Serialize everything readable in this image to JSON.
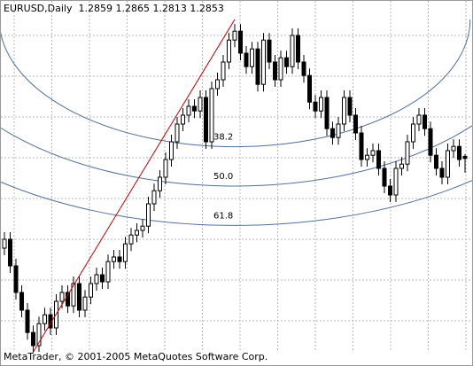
{
  "chart_data": {
    "type": "candlestick",
    "title": "EURUSD,Daily  1.2859 1.2865 1.2813 1.2853",
    "footer": "MetaTrader, © 2001-2005 MetaQuotes Software Corp.",
    "ylim": [
      1.23,
      1.33
    ],
    "grid": true,
    "candle_color": "#000000",
    "up_fill": "#ffffff",
    "down_fill": "#000000",
    "trend_color": "#c00000",
    "fib_color": "#4f6f9a",
    "fib_levels": [
      38.2,
      {
        "value": 50,
        "label": "50.0"
      },
      61.8
    ],
    "open": [
      1.26,
      1.2625,
      1.255,
      1.2475,
      1.2425,
      1.2362,
      1.2325,
      1.2387,
      1.2412,
      1.2375,
      1.245,
      1.2475,
      1.2437,
      1.25,
      1.2425,
      1.2462,
      1.25,
      1.2525,
      1.2505,
      1.2562,
      1.2575,
      1.2562,
      1.2612,
      1.2637,
      1.265,
      1.2662,
      1.2725,
      1.2762,
      1.28,
      1.285,
      1.29,
      1.295,
      1.2975,
      1.3,
      1.2987,
      1.3025,
      1.29,
      1.305,
      1.3075,
      1.3125,
      1.3187,
      1.3212,
      1.315,
      1.3112,
      1.3162,
      1.3062,
      1.3187,
      1.3125,
      1.3075,
      1.3137,
      1.3112,
      1.32,
      1.3125,
      1.3087,
      1.3012,
      1.2987,
      1.3025,
      1.2937,
      1.2912,
      1.295,
      1.3025,
      1.2975,
      1.2925,
      1.285,
      1.2862,
      1.2875,
      1.2825,
      1.2775,
      1.275,
      1.2825,
      1.2837,
      1.29,
      1.295,
      1.2975,
      1.2937,
      1.2862,
      1.2825,
      1.28,
      1.2875,
      1.2887,
      1.2859
    ],
    "high": [
      1.2645,
      1.2645,
      1.257,
      1.2495,
      1.2445,
      1.2382,
      1.2407,
      1.2432,
      1.2432,
      1.247,
      1.2495,
      1.2495,
      1.252,
      1.252,
      1.2482,
      1.252,
      1.2545,
      1.2545,
      1.2582,
      1.2595,
      1.2595,
      1.2632,
      1.2657,
      1.267,
      1.2682,
      1.2745,
      1.2782,
      1.282,
      1.287,
      1.292,
      1.297,
      1.2995,
      1.302,
      1.302,
      1.3045,
      1.3045,
      1.307,
      1.3095,
      1.3145,
      1.3207,
      1.3232,
      1.3232,
      1.317,
      1.3182,
      1.3182,
      1.3207,
      1.3207,
      1.3145,
      1.3157,
      1.3157,
      1.322,
      1.322,
      1.3145,
      1.3107,
      1.3032,
      1.3045,
      1.3045,
      1.2957,
      1.297,
      1.3045,
      1.3045,
      1.2995,
      1.2945,
      1.2882,
      1.2895,
      1.2895,
      1.2845,
      1.2795,
      1.2845,
      1.2857,
      1.292,
      1.297,
      1.2995,
      1.2995,
      1.2957,
      1.2882,
      1.2845,
      1.2895,
      1.2907,
      1.2907,
      1.2865
    ],
    "low": [
      1.258,
      1.253,
      1.2455,
      1.2405,
      1.2342,
      1.2305,
      1.2305,
      1.2367,
      1.2355,
      1.2355,
      1.243,
      1.2417,
      1.2417,
      1.2405,
      1.2405,
      1.2442,
      1.248,
      1.2485,
      1.2485,
      1.2542,
      1.2542,
      1.2542,
      1.2592,
      1.2617,
      1.263,
      1.2642,
      1.2705,
      1.2742,
      1.278,
      1.283,
      1.288,
      1.293,
      1.2955,
      1.2967,
      1.2967,
      1.288,
      1.288,
      1.303,
      1.3055,
      1.3105,
      1.3167,
      1.313,
      1.3092,
      1.3092,
      1.3042,
      1.3042,
      1.3105,
      1.3055,
      1.3055,
      1.3092,
      1.3092,
      1.3105,
      1.3067,
      1.2992,
      1.2967,
      1.2967,
      1.2917,
      1.2892,
      1.2892,
      1.293,
      1.2955,
      1.2905,
      1.283,
      1.283,
      1.2842,
      1.2805,
      1.2755,
      1.273,
      1.273,
      1.2805,
      1.2817,
      1.288,
      1.293,
      1.2917,
      1.2842,
      1.2805,
      1.278,
      1.278,
      1.2855,
      1.283,
      1.2813
    ],
    "close": [
      1.2625,
      1.255,
      1.2475,
      1.2425,
      1.2362,
      1.2325,
      1.2387,
      1.2412,
      1.2375,
      1.245,
      1.2475,
      1.2437,
      1.25,
      1.2425,
      1.2462,
      1.25,
      1.2525,
      1.2505,
      1.2562,
      1.2575,
      1.2562,
      1.2612,
      1.2637,
      1.265,
      1.2662,
      1.2725,
      1.2762,
      1.28,
      1.285,
      1.29,
      1.295,
      1.2975,
      1.3,
      1.2987,
      1.3025,
      1.29,
      1.305,
      1.3075,
      1.3125,
      1.3187,
      1.3212,
      1.315,
      1.3112,
      1.3162,
      1.3062,
      1.3187,
      1.3125,
      1.3075,
      1.3137,
      1.3112,
      1.32,
      1.3125,
      1.3087,
      1.3012,
      1.2987,
      1.3025,
      1.2937,
      1.2912,
      1.295,
      1.3025,
      1.2975,
      1.2925,
      1.285,
      1.2862,
      1.2875,
      1.2825,
      1.2775,
      1.275,
      1.2825,
      1.2837,
      1.29,
      1.295,
      1.2975,
      1.2937,
      1.2862,
      1.2825,
      1.28,
      1.2875,
      1.2887,
      1.285,
      1.2853
    ]
  }
}
